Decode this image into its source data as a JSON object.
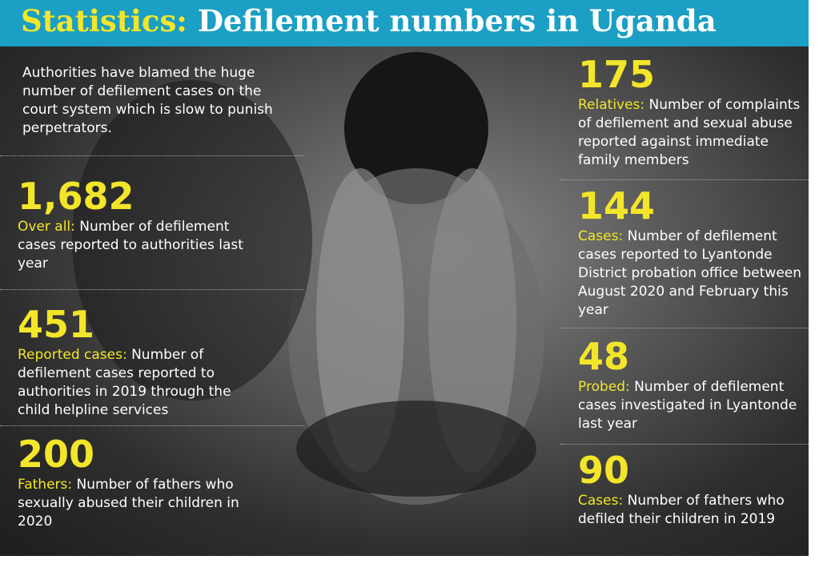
{
  "header": {
    "highlight": "Statistics:",
    "title": "Defilement numbers in Uganda"
  },
  "intro": "Authorities have blamed the huge number of defilement cases on the court system which is slow to punish perpetrators.",
  "left": [
    {
      "number": "1,682",
      "label": "Over all:",
      "text": "Number of defilement cases reported to authorities last year"
    },
    {
      "number": "451",
      "label": "Reported cases:",
      "text": "Number of defilement cases reported to authorities in 2019 through the child helpline services"
    },
    {
      "number": "200",
      "label": "Fathers:",
      "text": "Number of fathers who sexually abused their children in 2020"
    }
  ],
  "right": [
    {
      "number": "175",
      "label": "Relatives:",
      "text": "Number of complaints of defilement and sexual abuse reported against immediate family members"
    },
    {
      "number": "144",
      "label": "Cases:",
      "text": "Number of defilement cases reported to Lyantonde District probation office between August 2020 and February this year"
    },
    {
      "number": "48",
      "label": "Probed:",
      "text": "Number of defilement cases investigated in Lyantonde last year"
    },
    {
      "number": "90",
      "label": "Cases:",
      "text": "Number of fathers who defiled their children in 2019"
    }
  ]
}
